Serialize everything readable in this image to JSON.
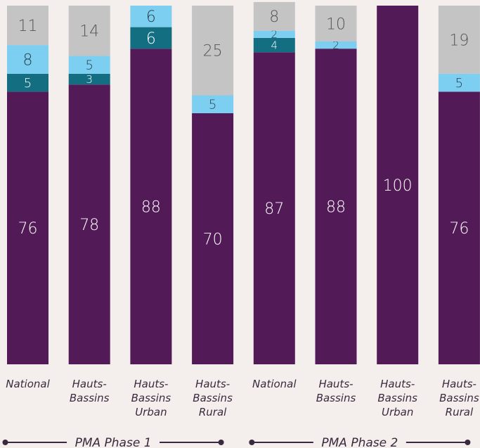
{
  "chart_data": {
    "type": "bar",
    "stacked": true,
    "ylim": [
      0,
      100
    ],
    "categories": [
      [
        "National"
      ],
      [
        "Hauts-",
        "Bassins"
      ],
      [
        "Hauts-",
        "Bassins",
        "Urban"
      ],
      [
        "Hauts-",
        "Bassins",
        "Rural"
      ],
      [
        "National"
      ],
      [
        "Hauts-",
        "Bassins"
      ],
      [
        "Hauts-",
        "Bassins",
        "Urban"
      ],
      [
        "Hauts-",
        "Bassins",
        "Rural"
      ]
    ],
    "series": [
      {
        "color": "#521a57",
        "text": "#ffffff",
        "values": [
          76,
          78,
          88,
          70,
          87,
          88,
          100,
          76
        ]
      },
      {
        "color": "#136e82",
        "text": "#ffffff",
        "values": [
          5,
          3,
          6,
          0,
          4,
          0,
          0,
          0
        ]
      },
      {
        "color": "#7ccff0",
        "text": "#27414c",
        "values": [
          8,
          5,
          6,
          5,
          2,
          2,
          0,
          5
        ]
      },
      {
        "color": "#c4c4c4",
        "text": "#555555",
        "values": [
          11,
          14,
          0,
          25,
          8,
          10,
          0,
          19
        ]
      }
    ],
    "groups": [
      {
        "label": "PMA Phase 1",
        "start": 0,
        "end": 3
      },
      {
        "label": "PMA Phase 2",
        "start": 4,
        "end": 7
      }
    ],
    "colors": {
      "line": "#3b2a3f",
      "background": "#f4eeec"
    }
  }
}
